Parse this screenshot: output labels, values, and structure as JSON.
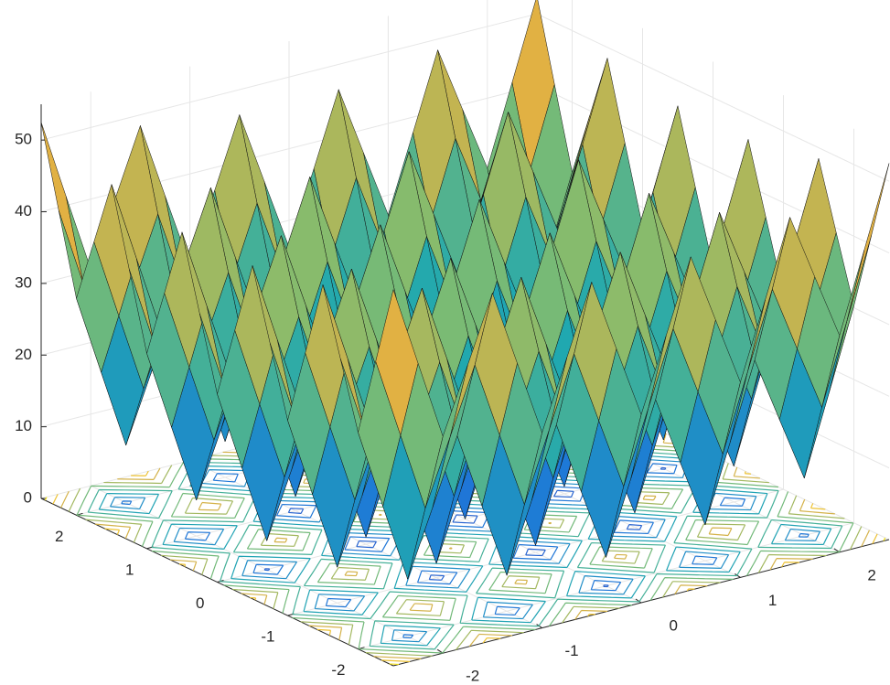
{
  "chart_data": {
    "type": "surface",
    "contour": true,
    "grid": true,
    "x": [
      -2.5,
      -2.25,
      -2,
      -1.75,
      -1.5,
      -1.25,
      -1,
      -0.75,
      -0.5,
      -0.25,
      0,
      0.25,
      0.5,
      0.75,
      1,
      1.25,
      1.5,
      1.75,
      2,
      2.25,
      2.5
    ],
    "y": [
      -2.5,
      -2.25,
      -2,
      -1.75,
      -1.5,
      -1.25,
      -1,
      -0.75,
      -0.5,
      -0.25,
      0,
      0.25,
      0.5,
      0.75,
      1,
      1.25,
      1.5,
      1.75,
      2,
      2.25,
      2.5
    ],
    "z": [
      [
        52.5,
        41.3125,
        30.25,
        39.3125,
        48.5,
        37.8125,
        27.25,
        36.8125,
        46.5,
        36.3125,
        26.25,
        36.3125,
        46.5,
        36.8125,
        27.25,
        37.8125,
        48.5,
        39.3125,
        30.25,
        41.3125,
        52.5
      ],
      [
        41.3125,
        30.125,
        19.0625,
        28.125,
        37.3125,
        26.625,
        16.0625,
        25.625,
        35.3125,
        25.125,
        15.0625,
        25.125,
        35.3125,
        25.625,
        16.0625,
        26.625,
        37.3125,
        28.125,
        19.0625,
        30.125,
        41.3125
      ],
      [
        30.25,
        19.0625,
        8,
        17.0625,
        26.25,
        15.5625,
        5,
        14.5625,
        24.25,
        14.0625,
        4,
        14.0625,
        24.25,
        14.5625,
        5,
        15.5625,
        26.25,
        17.0625,
        8,
        19.0625,
        30.25
      ],
      [
        39.3125,
        28.125,
        17.0625,
        26.125,
        35.3125,
        24.625,
        14.0625,
        23.625,
        33.3125,
        23.125,
        13.0625,
        23.125,
        33.3125,
        23.625,
        14.0625,
        24.625,
        35.3125,
        26.125,
        17.0625,
        28.125,
        39.3125
      ],
      [
        48.5,
        37.3125,
        26.25,
        35.3125,
        44.5,
        33.8125,
        23.25,
        32.8125,
        42.5,
        32.3125,
        22.25,
        32.3125,
        42.5,
        32.8125,
        23.25,
        33.8125,
        44.5,
        35.3125,
        26.25,
        37.3125,
        48.5
      ],
      [
        37.8125,
        26.625,
        15.5625,
        24.625,
        33.8125,
        23.125,
        12.5625,
        22.125,
        31.8125,
        21.625,
        11.5625,
        21.625,
        31.8125,
        22.125,
        12.5625,
        23.125,
        33.8125,
        24.625,
        15.5625,
        26.625,
        37.8125
      ],
      [
        27.25,
        16.0625,
        5,
        14.0625,
        23.25,
        12.5625,
        2,
        11.5625,
        21.25,
        11.0625,
        1,
        11.0625,
        21.25,
        11.5625,
        2,
        12.5625,
        23.25,
        14.0625,
        5,
        16.0625,
        27.25
      ],
      [
        36.8125,
        25.625,
        14.5625,
        23.625,
        32.8125,
        22.125,
        11.5625,
        21.125,
        30.8125,
        20.625,
        10.5625,
        20.625,
        30.8125,
        21.125,
        11.5625,
        22.125,
        32.8125,
        23.625,
        14.5625,
        25.625,
        36.8125
      ],
      [
        46.5,
        35.3125,
        24.25,
        33.3125,
        42.5,
        31.8125,
        21.25,
        30.8125,
        40.5,
        30.3125,
        20.25,
        30.3125,
        40.5,
        30.8125,
        21.25,
        31.8125,
        42.5,
        33.3125,
        24.25,
        35.3125,
        46.5
      ],
      [
        36.3125,
        25.125,
        14.0625,
        23.125,
        32.3125,
        21.625,
        11.0625,
        20.625,
        30.3125,
        20.125,
        10.0625,
        20.125,
        30.3125,
        20.625,
        11.0625,
        21.625,
        32.3125,
        23.125,
        14.0625,
        25.125,
        36.3125
      ],
      [
        26.25,
        15.0625,
        4,
        13.0625,
        22.25,
        11.5625,
        1,
        10.5625,
        20.25,
        10.0625,
        0,
        10.0625,
        20.25,
        10.5625,
        1,
        11.5625,
        22.25,
        13.0625,
        4,
        15.0625,
        26.25
      ],
      [
        36.3125,
        25.125,
        14.0625,
        23.125,
        32.3125,
        21.625,
        11.0625,
        20.625,
        30.3125,
        20.125,
        10.0625,
        20.125,
        30.3125,
        20.625,
        11.0625,
        21.625,
        32.3125,
        23.125,
        14.0625,
        25.125,
        36.3125
      ],
      [
        46.5,
        35.3125,
        24.25,
        33.3125,
        42.5,
        31.8125,
        21.25,
        30.8125,
        40.5,
        30.3125,
        20.25,
        30.3125,
        40.5,
        30.8125,
        21.25,
        31.8125,
        42.5,
        33.3125,
        24.25,
        35.3125,
        46.5
      ],
      [
        36.8125,
        25.625,
        14.5625,
        23.625,
        32.8125,
        22.125,
        11.5625,
        21.125,
        30.8125,
        20.625,
        10.5625,
        20.625,
        30.8125,
        21.125,
        11.5625,
        22.125,
        32.8125,
        23.625,
        14.5625,
        25.625,
        36.8125
      ],
      [
        27.25,
        16.0625,
        5,
        14.0625,
        23.25,
        12.5625,
        2,
        11.5625,
        21.25,
        11.0625,
        1,
        11.0625,
        21.25,
        11.5625,
        2,
        12.5625,
        23.25,
        14.0625,
        5,
        16.0625,
        27.25
      ],
      [
        37.8125,
        26.625,
        15.5625,
        24.625,
        33.8125,
        23.125,
        12.5625,
        22.125,
        31.8125,
        21.625,
        11.5625,
        21.625,
        31.8125,
        22.125,
        12.5625,
        23.125,
        33.8125,
        24.625,
        15.5625,
        26.625,
        37.8125
      ],
      [
        48.5,
        37.3125,
        26.25,
        35.3125,
        44.5,
        33.8125,
        23.25,
        32.8125,
        42.5,
        32.3125,
        22.25,
        32.3125,
        42.5,
        32.8125,
        23.25,
        33.8125,
        44.5,
        35.3125,
        26.25,
        37.3125,
        48.5
      ],
      [
        39.3125,
        28.125,
        17.0625,
        26.125,
        35.3125,
        24.625,
        14.0625,
        23.625,
        33.3125,
        23.125,
        13.0625,
        23.125,
        33.3125,
        23.625,
        14.0625,
        24.625,
        35.3125,
        26.125,
        17.0625,
        28.125,
        39.3125
      ],
      [
        30.25,
        19.0625,
        8,
        17.0625,
        26.25,
        15.5625,
        5,
        14.5625,
        24.25,
        14.0625,
        4,
        14.0625,
        24.25,
        14.5625,
        5,
        15.5625,
        26.25,
        17.0625,
        8,
        19.0625,
        30.25
      ],
      [
        41.3125,
        30.125,
        19.0625,
        28.125,
        37.3125,
        26.625,
        16.0625,
        25.625,
        35.3125,
        25.125,
        15.0625,
        25.125,
        35.3125,
        25.625,
        16.0625,
        26.625,
        37.3125,
        28.125,
        19.0625,
        30.125,
        41.3125
      ],
      [
        52.5,
        41.3125,
        30.25,
        39.3125,
        48.5,
        37.8125,
        27.25,
        36.8125,
        46.5,
        36.3125,
        26.25,
        36.3125,
        46.5,
        36.8125,
        27.25,
        37.8125,
        48.5,
        39.3125,
        30.25,
        41.3125,
        52.5
      ]
    ],
    "contour_levels": [
      5,
      10,
      15,
      20,
      25,
      30,
      35,
      40,
      45,
      50
    ],
    "xlim": [
      -2.5,
      2.5
    ],
    "ylim": [
      -2.5,
      2.5
    ],
    "zlim": [
      0,
      55
    ],
    "xticks": [
      -2,
      -1,
      0,
      1,
      2
    ],
    "yticks": [
      -2,
      -1,
      0,
      1,
      2
    ],
    "zticks": [
      0,
      10,
      20,
      30,
      40,
      50
    ]
  }
}
